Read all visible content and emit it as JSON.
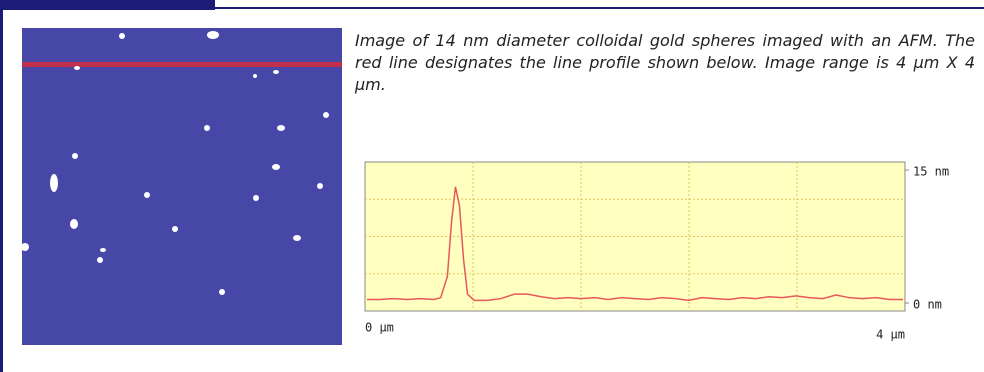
{
  "caption": "Image of 14 nm diameter colloidal gold spheres imaged with an AFM. The red line designates the line profile shown below. Image range is 4 µm X 4 µm.",
  "chart_data": {
    "type": "line",
    "color": "#e8585a",
    "grid": true,
    "x": [
      0,
      0.1,
      0.2,
      0.3,
      0.4,
      0.5,
      0.55,
      0.6,
      0.63,
      0.66,
      0.69,
      0.72,
      0.75,
      0.8,
      0.9,
      1.0,
      1.1,
      1.2,
      1.3,
      1.4,
      1.5,
      1.6,
      1.7,
      1.8,
      1.9,
      2.0,
      2.1,
      2.2,
      2.3,
      2.4,
      2.5,
      2.6,
      2.7,
      2.8,
      2.9,
      3.0,
      3.1,
      3.2,
      3.3,
      3.4,
      3.5,
      3.6,
      3.7,
      3.8,
      3.9,
      4.0
    ],
    "values": [
      0.4,
      0.4,
      0.5,
      0.4,
      0.5,
      0.4,
      0.6,
      3,
      9,
      13.1,
      11,
      5,
      1,
      0.3,
      0.3,
      0.5,
      1.0,
      1.0,
      0.7,
      0.5,
      0.6,
      0.5,
      0.6,
      0.4,
      0.6,
      0.5,
      0.4,
      0.6,
      0.5,
      0.3,
      0.6,
      0.5,
      0.4,
      0.6,
      0.5,
      0.7,
      0.6,
      0.8,
      0.6,
      0.5,
      0.9,
      0.6,
      0.5,
      0.6,
      0.4,
      0.4
    ],
    "xlim": [
      0,
      4
    ],
    "ylim": [
      0,
      15
    ],
    "xticks": [
      {
        "value": 0,
        "label": "0 µm"
      },
      {
        "value": 4,
        "label": "4 µm"
      }
    ],
    "yticks": [
      {
        "value": 0,
        "label": "0 nm"
      },
      {
        "value": 15,
        "label": "15 nm"
      }
    ]
  }
}
